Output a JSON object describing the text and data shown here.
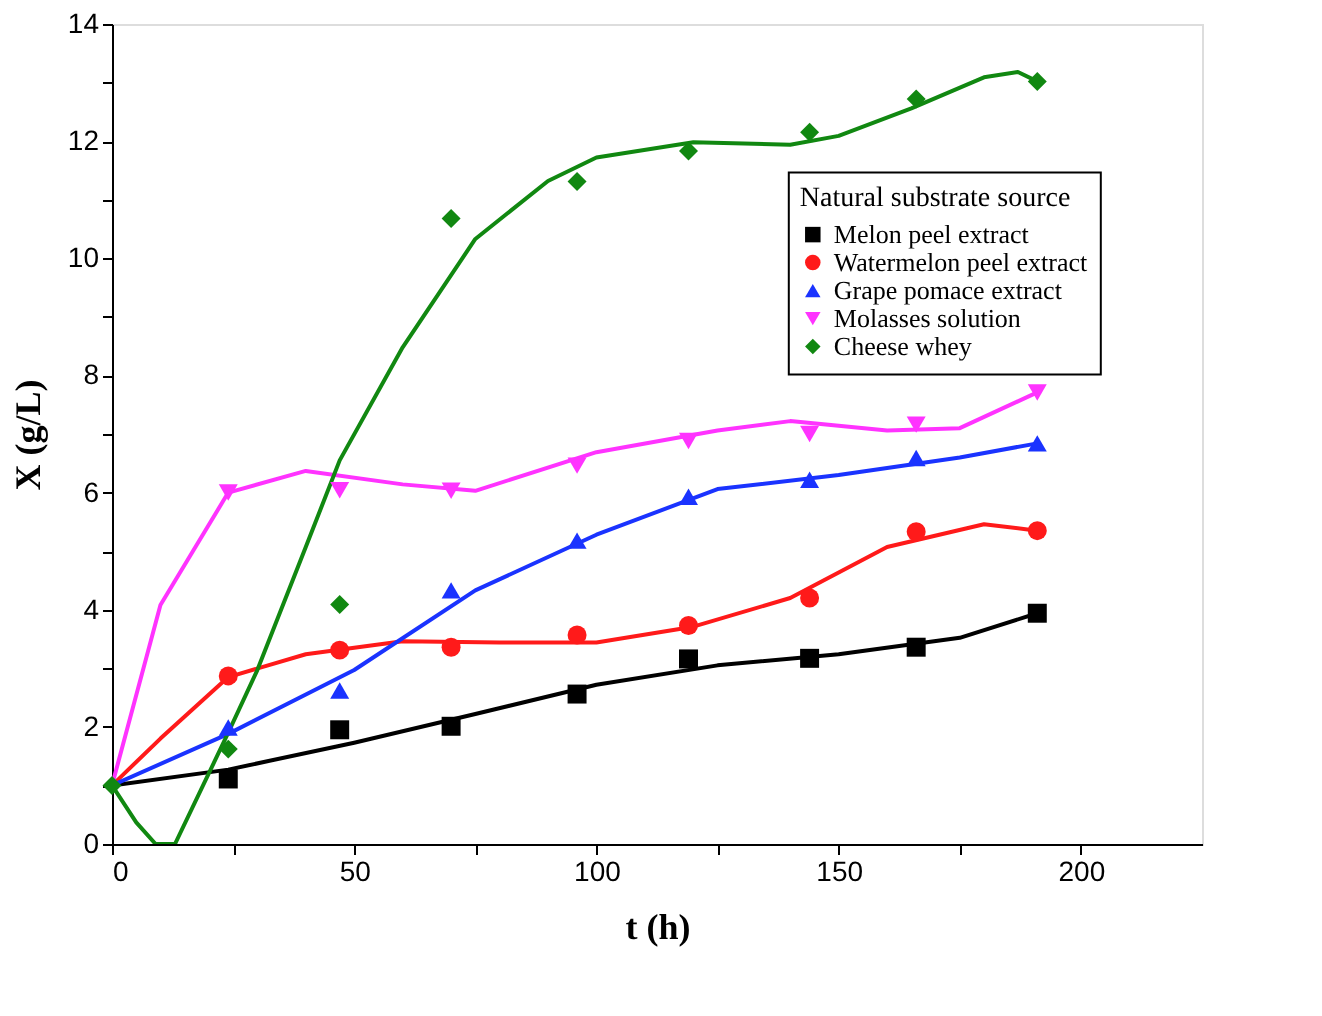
{
  "chart_data": {
    "type": "scatter",
    "xlabel": "t (h)",
    "ylabel": "X (g/L)",
    "legend_title": "Natural substrate source",
    "legend": "right",
    "grid": false,
    "xlim": [
      0,
      225
    ],
    "ylim": [
      0,
      14
    ],
    "xticks": [
      0,
      {
        "value": 25,
        "label": null
      },
      50,
      {
        "value": 75,
        "label": null
      },
      100,
      {
        "value": 125,
        "label": null
      },
      150,
      {
        "value": 175,
        "label": null
      },
      200
    ],
    "yticks": [
      0,
      {
        "value": 1,
        "label": null
      },
      2,
      {
        "value": 3,
        "label": null
      },
      4,
      {
        "value": 5,
        "label": null
      },
      6,
      {
        "value": 7,
        "label": null
      },
      8,
      {
        "value": 9,
        "label": null
      },
      10,
      {
        "value": 11,
        "label": null
      },
      12,
      {
        "value": 13,
        "label": null
      },
      14
    ],
    "series": [
      {
        "type": "scatter",
        "name": "Melon peel extract",
        "color": "#000000",
        "marker": "square",
        "x": [
          24,
          47,
          70,
          96,
          119,
          144,
          166,
          191
        ],
        "values": [
          1.11,
          1.95,
          2.01,
          2.56,
          3.16,
          3.17,
          3.36,
          3.94
        ]
      },
      {
        "type": "scatter",
        "name": "Watermelon peel extract",
        "color": "#ff1a1a",
        "marker": "circle",
        "x": [
          24,
          47,
          70,
          96,
          119,
          144,
          166,
          191
        ],
        "values": [
          2.87,
          3.31,
          3.36,
          3.57,
          3.73,
          4.2,
          5.33,
          5.35
        ]
      },
      {
        "type": "scatter",
        "name": "Grape pomace extract",
        "color": "#1a33ff",
        "marker": "triangle",
        "x": [
          24,
          47,
          70,
          96,
          119,
          144,
          166,
          191
        ],
        "values": [
          1.99,
          2.62,
          4.33,
          5.18,
          5.93,
          6.22,
          6.59,
          6.84
        ]
      },
      {
        "type": "scatter",
        "name": "Molasses solution",
        "color": "#ff33ff",
        "marker": "triangle-down",
        "x": [
          24,
          47,
          70,
          96,
          119,
          144,
          166,
          191
        ],
        "values": [
          6.0,
          6.04,
          6.03,
          6.46,
          6.88,
          7.0,
          7.16,
          7.71
        ]
      },
      {
        "type": "scatter",
        "name": "Cheese whey",
        "color": "#118811",
        "marker": "diamond",
        "x": [
          0,
          24,
          47,
          70,
          96,
          119,
          144,
          166,
          191
        ],
        "values": [
          1.0,
          1.62,
          4.09,
          10.68,
          11.31,
          11.83,
          12.15,
          12.72,
          13.02
        ]
      },
      {
        "type": "line",
        "color": "#000000",
        "x": [
          0,
          24,
          50,
          75,
          100,
          125,
          150,
          175,
          191
        ],
        "values": [
          1.0,
          1.27,
          1.73,
          2.22,
          2.72,
          3.05,
          3.24,
          3.52,
          3.94
        ]
      },
      {
        "type": "line",
        "color": "#ff1a1a",
        "x": [
          0,
          10,
          24,
          40,
          60,
          80,
          100,
          120,
          140,
          160,
          180,
          191
        ],
        "values": [
          1.0,
          1.8,
          2.85,
          3.24,
          3.46,
          3.44,
          3.44,
          3.71,
          4.2,
          5.07,
          5.46,
          5.35
        ]
      },
      {
        "type": "line",
        "color": "#1a33ff",
        "x": [
          0,
          24,
          50,
          75,
          100,
          125,
          150,
          175,
          191
        ],
        "values": [
          1.0,
          1.88,
          2.97,
          4.33,
          5.28,
          6.06,
          6.3,
          6.6,
          6.84
        ]
      },
      {
        "type": "line",
        "color": "#ff33ff",
        "x": [
          0,
          10,
          24,
          40,
          60,
          75,
          100,
          125,
          140,
          160,
          175,
          191
        ],
        "values": [
          1.0,
          4.08,
          6.0,
          6.37,
          6.14,
          6.03,
          6.69,
          7.06,
          7.22,
          7.06,
          7.1,
          7.71
        ]
      },
      {
        "type": "line",
        "color": "#118811",
        "x": [
          0,
          5,
          9,
          13,
          24,
          30,
          40,
          47,
          60,
          75,
          90,
          100,
          120,
          140,
          150,
          165,
          180,
          187,
          191
        ],
        "values": [
          1.0,
          0.37,
          0.0,
          0.0,
          1.9,
          2.97,
          5.07,
          6.55,
          8.48,
          10.33,
          11.32,
          11.72,
          11.98,
          11.94,
          12.09,
          12.56,
          13.09,
          13.18,
          13.02
        ]
      }
    ]
  }
}
